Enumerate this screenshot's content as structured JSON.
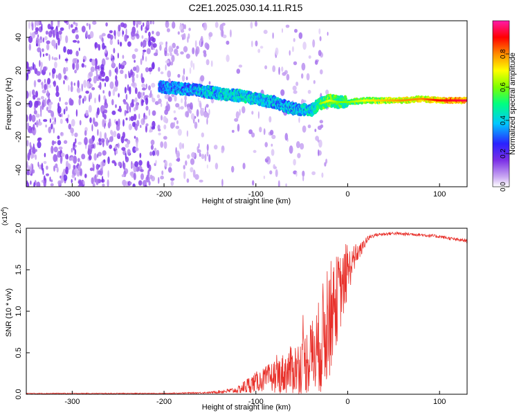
{
  "title": "C2E1.2025.030.14.11.R15",
  "colors": {
    "snr_line": "#e8302a",
    "axis": "#000000",
    "background": "#ffffff"
  },
  "chart_data": [
    {
      "type": "heatmap",
      "xlabel": "Height of straight line (km)",
      "ylabel": "Frequency (Hz)",
      "xlim": [
        -350,
        130
      ],
      "ylim": [
        -50,
        50
      ],
      "xticks": [
        -300,
        -200,
        -100,
        0,
        100
      ],
      "yticks": [
        -40,
        -20,
        0,
        20,
        40
      ],
      "colorbar": {
        "label": "Normalized spectral amplitude",
        "range": [
          0,
          1
        ],
        "ticks": [
          0.0,
          0.2,
          0.4,
          0.6,
          0.8
        ],
        "colormap": "rainbow (purple-blue-cyan-green-yellow-orange-red-magenta)"
      },
      "ridge": {
        "description": "frequency ridge of strongest amplitude",
        "x": [
          -200,
          -180,
          -160,
          -140,
          -120,
          -100,
          -80,
          -60,
          -40,
          -30,
          -20,
          -10,
          0,
          20,
          40,
          60,
          80,
          100,
          130
        ],
        "y": [
          10,
          9,
          8,
          6,
          5,
          3,
          1,
          -3,
          -4,
          0,
          2,
          1,
          1,
          2,
          2,
          2,
          3,
          2,
          2
        ],
        "amplitude": [
          0.4,
          0.42,
          0.45,
          0.48,
          0.5,
          0.5,
          0.45,
          0.45,
          0.5,
          0.6,
          0.7,
          0.6,
          0.6,
          0.7,
          0.75,
          0.8,
          0.8,
          0.9,
          0.95
        ]
      },
      "noise_region_x": [
        -350,
        -150
      ]
    },
    {
      "type": "line",
      "xlabel": "Height of straight line (km)",
      "ylabel": "SNR (10 * v/v)",
      "y_multiplier_label": "(x10",
      "y_multiplier_exp": "4",
      "xlim": [
        -350,
        130
      ],
      "ylim": [
        0,
        2.0
      ],
      "xticks": [
        -300,
        -200,
        -100,
        0,
        100
      ],
      "yticks": [
        "0.0",
        "0.5",
        "1.0",
        "1.5",
        "2.0"
      ],
      "series": [
        {
          "x": [
            -350,
            -300,
            -250,
            -200,
            -150,
            -120,
            -110,
            -100,
            -90,
            -80,
            -70,
            -60,
            -50,
            -40,
            -35,
            -30,
            -25,
            -20,
            -15,
            -10,
            -5,
            0,
            5,
            10,
            15,
            20,
            25,
            30,
            40,
            50,
            60,
            70,
            80,
            90,
            100,
            110,
            120,
            130
          ],
          "y": [
            0.01,
            0.01,
            0.01,
            0.01,
            0.02,
            0.05,
            0.1,
            0.15,
            0.18,
            0.22,
            0.25,
            0.3,
            0.35,
            0.45,
            0.5,
            0.6,
            0.75,
            0.9,
            1.05,
            1.2,
            1.3,
            1.45,
            1.6,
            1.7,
            1.75,
            1.85,
            1.9,
            1.92,
            1.93,
            1.94,
            1.93,
            1.93,
            1.92,
            1.91,
            1.9,
            1.88,
            1.86,
            1.85
          ],
          "noise_amp": [
            0.005,
            0.005,
            0.005,
            0.005,
            0.01,
            0.04,
            0.1,
            0.12,
            0.15,
            0.2,
            0.25,
            0.3,
            0.35,
            0.45,
            0.5,
            0.6,
            0.7,
            0.7,
            0.6,
            0.5,
            0.4,
            0.3,
            0.2,
            0.12,
            0.08,
            0.05,
            0.03,
            0.02,
            0.02,
            0.02,
            0.02,
            0.02,
            0.02,
            0.02,
            0.02,
            0.02,
            0.02,
            0.02
          ]
        }
      ]
    }
  ]
}
